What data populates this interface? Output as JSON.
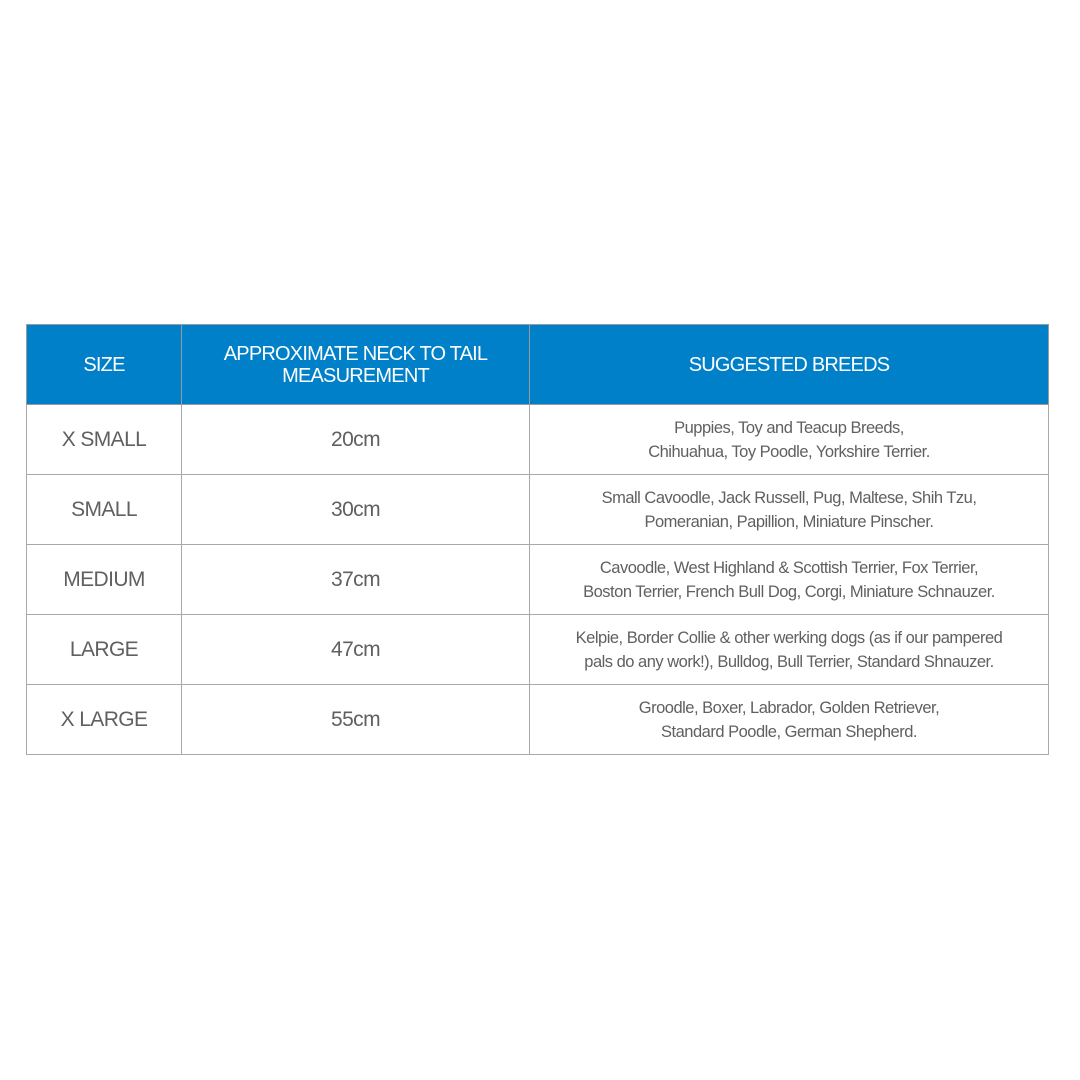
{
  "header": {
    "size": "SIZE",
    "measurement": [
      "APPROXIMATE NECK TO TAIL",
      "MEASUREMENT"
    ],
    "breeds": "SUGGESTED BREEDS"
  },
  "colors": {
    "header_bg": "#0080c8",
    "text": "#5f6062",
    "border": "#a9a9a9"
  },
  "rows": [
    {
      "size": "X SMALL",
      "measurement": "20cm",
      "breeds": [
        "Puppies, Toy and Teacup Breeds,",
        "Chihuahua, Toy Poodle, Yorkshire Terrier."
      ]
    },
    {
      "size": "SMALL",
      "measurement": "30cm",
      "breeds": [
        "Small Cavoodle, Jack Russell, Pug, Maltese, Shih Tzu,",
        "Pomeranian, Papillion, Miniature Pinscher."
      ]
    },
    {
      "size": "MEDIUM",
      "measurement": "37cm",
      "breeds": [
        "Cavoodle, West Highland & Scottish Terrier, Fox Terrier,",
        "Boston Terrier, French Bull Dog, Corgi, Miniature Schnauzer."
      ]
    },
    {
      "size": "LARGE",
      "measurement": "47cm",
      "breeds": [
        "Kelpie, Border Collie & other werking dogs (as if our pampered",
        "pals do any work!), Bulldog, Bull Terrier, Standard Shnauzer."
      ]
    },
    {
      "size": "X LARGE",
      "measurement": "55cm",
      "breeds": [
        "Groodle, Boxer, Labrador,  Golden Retriever,",
        "Standard Poodle, German Shepherd."
      ]
    }
  ]
}
